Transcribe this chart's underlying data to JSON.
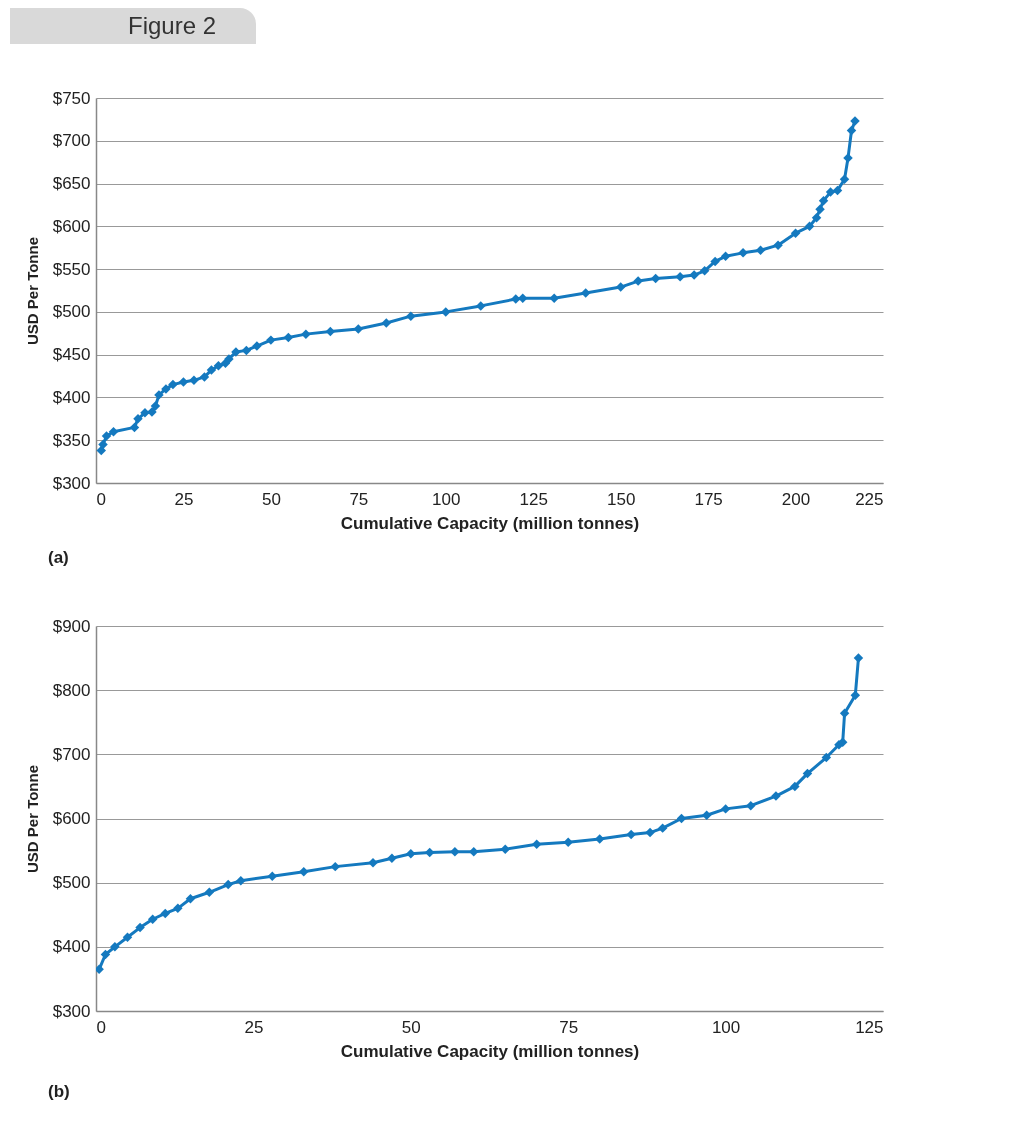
{
  "chart_data": [
    {
      "type": "line",
      "title": "Figure 2",
      "xlabel": "Cumulative Capacity (million tonnes)",
      "ylabel": "USD Per Tonne",
      "annotations": [
        "(a)"
      ],
      "marker": "diamond",
      "line_style": "solid",
      "grid": "y",
      "xlim": [
        0,
        225
      ],
      "xticks": [
        0,
        25,
        50,
        75,
        100,
        125,
        150,
        175,
        200,
        225
      ],
      "ylim": [
        300,
        750
      ],
      "yticks": [
        {
          "value": 300,
          "label": "$300"
        },
        {
          "value": 350,
          "label": "$350"
        },
        {
          "value": 400,
          "label": "$400"
        },
        {
          "value": 450,
          "label": "$450"
        },
        {
          "value": 500,
          "label": "$500"
        },
        {
          "value": 550,
          "label": "$550"
        },
        {
          "value": 600,
          "label": "$600"
        },
        {
          "value": 650,
          "label": "$650"
        },
        {
          "value": 700,
          "label": "$700"
        },
        {
          "value": 750,
          "label": "$750"
        }
      ],
      "x": [
        1.5,
        2,
        3,
        5,
        11,
        12,
        14,
        16,
        17,
        18,
        20,
        22,
        25,
        28,
        31,
        33,
        35,
        37,
        38,
        40,
        43,
        46,
        50,
        55,
        60,
        67,
        75,
        83,
        90,
        100,
        110,
        120,
        122,
        131,
        140,
        150,
        155,
        160,
        167,
        171,
        174,
        177,
        180,
        185,
        190,
        195,
        200,
        204,
        206,
        207,
        208,
        210,
        212,
        214,
        215,
        216,
        217
      ],
      "series": [
        {
          "color": "#1479bf",
          "values": [
            338,
            345,
            355,
            360,
            365,
            375,
            382,
            383,
            390,
            403,
            410,
            415,
            418,
            420,
            424,
            432,
            437,
            440,
            445,
            453,
            455,
            460,
            467,
            470,
            474,
            477,
            480,
            487,
            495,
            500,
            507,
            515,
            516,
            516,
            522,
            529,
            536,
            539,
            541,
            543,
            548,
            559,
            565,
            569,
            572,
            578,
            592,
            600,
            610,
            620,
            630,
            640,
            642,
            655,
            680,
            712,
            723
          ]
        }
      ]
    },
    {
      "type": "line",
      "xlabel": "Cumulative Capacity (million tonnes)",
      "ylabel": "USD Per Tonne",
      "annotations": [
        "(b)"
      ],
      "marker": "diamond",
      "line_style": "solid",
      "grid": "y",
      "xlim": [
        0,
        125
      ],
      "xticks": [
        0,
        25,
        50,
        75,
        100,
        125
      ],
      "ylim": [
        300,
        900
      ],
      "yticks": [
        {
          "value": 300,
          "label": "$300"
        },
        {
          "value": 400,
          "label": "$400"
        },
        {
          "value": 500,
          "label": "$500"
        },
        {
          "value": 600,
          "label": "$600"
        },
        {
          "value": 700,
          "label": "$700"
        },
        {
          "value": 800,
          "label": "$800"
        },
        {
          "value": 900,
          "label": "$900"
        }
      ],
      "x": [
        0.5,
        1.5,
        3,
        5,
        7,
        9,
        11,
        13,
        15,
        18,
        21,
        23,
        28,
        33,
        38,
        44,
        47,
        50,
        53,
        57,
        60,
        65,
        70,
        75,
        80,
        85,
        88,
        90,
        93,
        97,
        100,
        104,
        108,
        111,
        113,
        116,
        118,
        118.6,
        118.9,
        120.6,
        121.1
      ],
      "series": [
        {
          "color": "#1479bf",
          "values": [
            365,
            388,
            400,
            415,
            430,
            443,
            452,
            460,
            475,
            485,
            497,
            503,
            510,
            517,
            525,
            531,
            538,
            545,
            547,
            548,
            548,
            552,
            560,
            563,
            568,
            575,
            578,
            585,
            600,
            605,
            615,
            620,
            635,
            650,
            670,
            695,
            715,
            719,
            764,
            792,
            850
          ]
        }
      ]
    }
  ]
}
